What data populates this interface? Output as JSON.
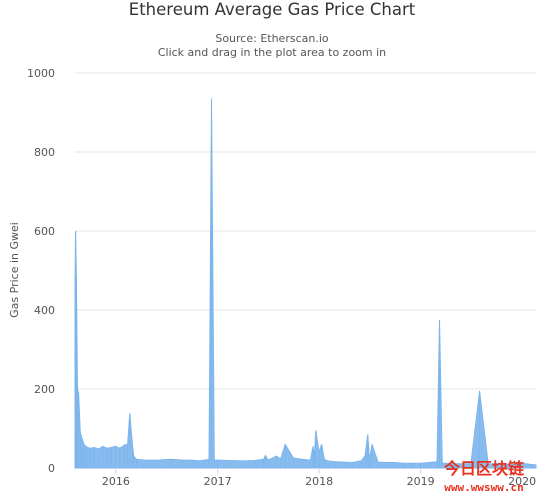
{
  "chart_data": {
    "type": "area",
    "title": "Ethereum Average Gas Price Chart",
    "subtitle": "Source: Etherscan.io",
    "subtitle2": "Click and drag in the plot area to zoom in",
    "xlabel": "",
    "ylabel": "Gas Price in Gwei",
    "ylim": [
      0,
      1000
    ],
    "xlim": [
      "2015-08-07",
      "2020-02-20"
    ],
    "y_ticks": [
      0,
      200,
      400,
      600,
      800,
      1000
    ],
    "x_ticks": [
      "2016",
      "2017",
      "2018",
      "2019",
      "2020"
    ],
    "grid": true,
    "series": [
      {
        "color": "#7cb5ec",
        "x": [
          "2015-08-07",
          "2015-08-09",
          "2015-08-12",
          "2015-08-16",
          "2015-08-20",
          "2015-08-26",
          "2015-09-01",
          "2015-09-08",
          "2015-09-15",
          "2015-09-22",
          "2015-10-01",
          "2015-10-15",
          "2015-11-01",
          "2015-11-15",
          "2015-12-01",
          "2015-12-15",
          "2016-01-01",
          "2016-01-15",
          "2016-02-01",
          "2016-02-12",
          "2016-02-20",
          "2016-03-01",
          "2016-03-05",
          "2016-03-15",
          "2016-04-15",
          "2016-06-01",
          "2016-07-15",
          "2016-09-01",
          "2016-10-01",
          "2016-10-15",
          "2016-10-25",
          "2016-11-15",
          "2016-12-01",
          "2016-12-10",
          "2016-12-20",
          "2017-01-01",
          "2017-02-15",
          "2017-04-01",
          "2017-05-15",
          "2017-06-15",
          "2017-06-22",
          "2017-07-01",
          "2017-08-01",
          "2017-08-15",
          "2017-09-01",
          "2017-10-01",
          "2017-11-01",
          "2017-12-01",
          "2017-12-10",
          "2017-12-15",
          "2017-12-20",
          "2018-01-01",
          "2018-01-10",
          "2018-01-20",
          "2018-02-01",
          "2018-03-01",
          "2018-04-01",
          "2018-05-01",
          "2018-06-01",
          "2018-06-15",
          "2018-06-25",
          "2018-07-01",
          "2018-07-10",
          "2018-08-01",
          "2018-09-01",
          "2018-10-01",
          "2018-11-01",
          "2018-12-01",
          "2019-01-01",
          "2019-02-01",
          "2019-03-01",
          "2019-03-10",
          "2019-03-20",
          "2019-04-01",
          "2019-05-01",
          "2019-06-01",
          "2019-07-01",
          "2019-08-01",
          "2019-09-01",
          "2019-10-01",
          "2019-11-01",
          "2019-12-01",
          "2020-01-01",
          "2020-02-01",
          "2020-02-20"
        ],
        "values": [
          470,
          600,
          480,
          200,
          190,
          90,
          75,
          60,
          55,
          52,
          50,
          52,
          48,
          55,
          50,
          52,
          55,
          50,
          58,
          60,
          138,
          55,
          30,
          22,
          20,
          20,
          22,
          20,
          20,
          19,
          18,
          20,
          22,
          935,
          20,
          20,
          19,
          18,
          19,
          22,
          32,
          20,
          30,
          22,
          60,
          25,
          22,
          20,
          55,
          30,
          95,
          40,
          60,
          22,
          18,
          16,
          15,
          14,
          18,
          30,
          85,
          20,
          60,
          15,
          14,
          14,
          12,
          12,
          12,
          14,
          16,
          375,
          12,
          12,
          11,
          11,
          11,
          195,
          10,
          12,
          10,
          9,
          12,
          9,
          8
        ]
      }
    ]
  },
  "watermark": {
    "line1": "今日区块链",
    "line2": "www.wwsww.cn"
  }
}
